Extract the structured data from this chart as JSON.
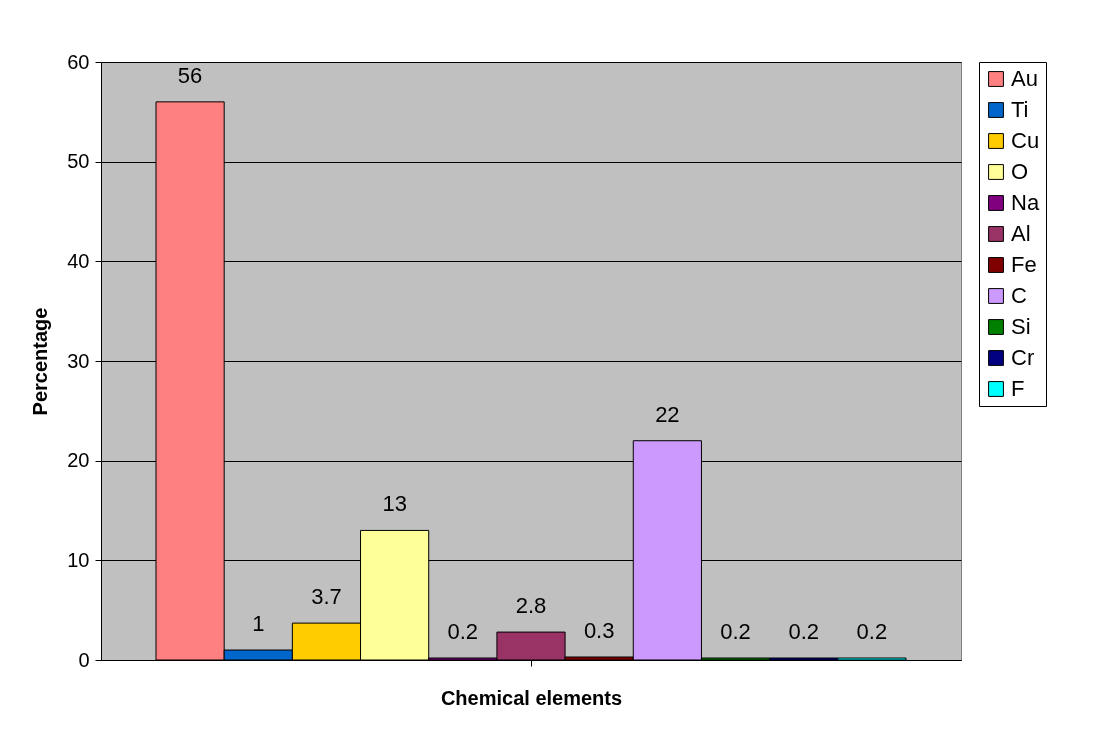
{
  "chart_data": {
    "type": "bar",
    "xlabel": "Chemical elements",
    "ylabel": "Percentage",
    "categories": [
      null
    ],
    "series": [
      {
        "name": "Au",
        "color": "#ff8080",
        "values": [
          56
        ]
      },
      {
        "name": "Ti",
        "color": "#0066cc",
        "values": [
          1
        ]
      },
      {
        "name": "Cu",
        "color": "#ffcc00",
        "values": [
          3.7
        ]
      },
      {
        "name": "O",
        "color": "#ffff99",
        "values": [
          13
        ]
      },
      {
        "name": "Na",
        "color": "#800080",
        "values": [
          0.2
        ]
      },
      {
        "name": "Al",
        "color": "#993366",
        "values": [
          2.8
        ]
      },
      {
        "name": "Fe",
        "color": "#800000",
        "values": [
          0.3
        ]
      },
      {
        "name": "C",
        "color": "#cc99ff",
        "values": [
          22
        ]
      },
      {
        "name": "Si",
        "color": "#008000",
        "values": [
          0.2
        ]
      },
      {
        "name": "Cr",
        "color": "#000080",
        "values": [
          0.2
        ]
      },
      {
        "name": "F",
        "color": "#00ffff",
        "values": [
          0.2
        ]
      }
    ],
    "ylim": [
      0,
      60
    ],
    "yticks": [
      0,
      10,
      20,
      30,
      40,
      50,
      60
    ],
    "grid": "y",
    "legend": "right",
    "data_labels": true
  }
}
